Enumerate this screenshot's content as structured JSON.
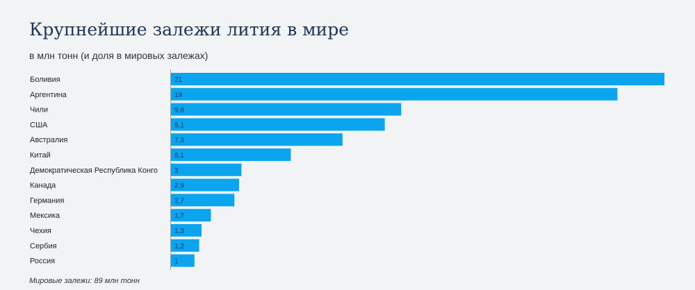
{
  "title": "Крупнейшие залежи лития в мире",
  "subtitle": "в млн тонн (и доля в мировых залежах)",
  "footnote": "Мировые залежи: 89 млн тонн",
  "colors": {
    "bar": "#0aa5ee",
    "background": "#f1f3f5",
    "title": "#1c3659"
  },
  "chart_data": {
    "type": "bar",
    "orientation": "horizontal",
    "title": "Крупнейшие залежи лития в мире",
    "subtitle": "в млн тонн (и доля в мировых залежах)",
    "xlabel": "",
    "ylabel": "",
    "xlim": [
      0,
      21
    ],
    "grid": false,
    "categories": [
      "Боливия",
      "Аргентина",
      "Чили",
      "США",
      "Австралия",
      "Китай",
      "Демократическая Республика Конго",
      "Канада",
      "Германия",
      "Мексика",
      "Чехия",
      "Сербия",
      "Россия"
    ],
    "values": [
      21,
      19,
      9.8,
      9.1,
      7.3,
      5.1,
      3,
      2.9,
      2.7,
      1.7,
      1.3,
      1.2,
      1
    ],
    "value_labels": [
      "21",
      "19",
      "9,8",
      "9,1",
      "7,3",
      "5,1",
      "3",
      "2,9",
      "2,7",
      "1,7",
      "1,3",
      "1,2",
      "1"
    ]
  }
}
